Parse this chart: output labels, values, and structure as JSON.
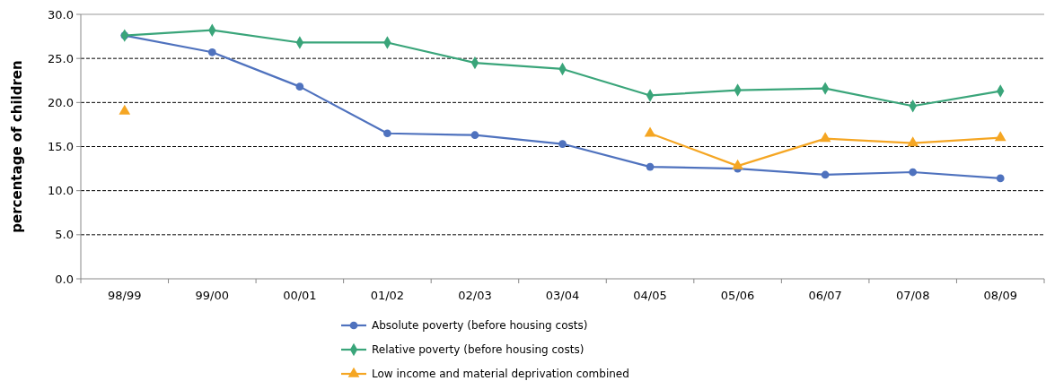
{
  "chart_data": {
    "type": "line",
    "ylabel": "percentage of children",
    "categories": [
      "98/99",
      "99/00",
      "00/01",
      "01/02",
      "02/03",
      "03/04",
      "04/05",
      "05/06",
      "06/07",
      "07/08",
      "08/09"
    ],
    "ylim": [
      0,
      30
    ],
    "yticks": [
      {
        "value": 0,
        "label": "0.0"
      },
      {
        "value": 5,
        "label": "5.0"
      },
      {
        "value": 10,
        "label": "10.0"
      },
      {
        "value": 15,
        "label": "15.0"
      },
      {
        "value": 20,
        "label": "20.0"
      },
      {
        "value": 25,
        "label": "25.0"
      },
      {
        "value": 30,
        "label": "30.0"
      }
    ],
    "grid": "y",
    "legend": "bottom",
    "series": [
      {
        "name": "Absolute poverty (before housing costs)",
        "color": "#4f72be",
        "marker": "circle",
        "values": [
          27.6,
          25.7,
          21.8,
          16.5,
          16.3,
          15.3,
          12.7,
          12.5,
          11.8,
          12.1,
          11.4
        ]
      },
      {
        "name": "Relative poverty (before housing costs)",
        "color": "#3aa57a",
        "marker": "diamond",
        "values": [
          27.6,
          28.2,
          26.8,
          26.8,
          24.5,
          23.8,
          20.8,
          21.4,
          21.6,
          19.6,
          21.3
        ]
      },
      {
        "name": "Low income and material deprivation combined",
        "color": "#f5a623",
        "marker": "triangle",
        "values": [
          19.0,
          null,
          null,
          null,
          null,
          null,
          16.5,
          12.8,
          15.9,
          15.4,
          16.0
        ]
      }
    ]
  }
}
